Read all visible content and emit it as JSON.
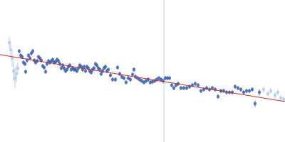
{
  "chart_data": {
    "type": "scatter",
    "tick_labels": false,
    "xlim": [
      0,
      400
    ],
    "ylim": [
      0,
      200
    ],
    "reference_lines": [
      {
        "x": 230,
        "color": "#c8d4ea"
      }
    ],
    "series": [
      {
        "color": "#b6c8e6",
        "marker": "circle",
        "x": [
          13,
          15,
          17,
          19,
          21,
          23,
          25,
          370,
          376,
          380,
          386,
          390,
          394,
          398
        ],
        "values": [
          140,
          130,
          118,
          100,
          90,
          96,
          104,
          74,
          68,
          72,
          66,
          70,
          62,
          60
        ],
        "errors": [
          8,
          10,
          12,
          14,
          14,
          12,
          8,
          4,
          4,
          4,
          4,
          4,
          4,
          4
        ]
      },
      {
        "color": "#3a63ad",
        "marker": "circle",
        "x": [
          27,
          29,
          31,
          33,
          35,
          36,
          38,
          40,
          42,
          44,
          46,
          48,
          50,
          52,
          54,
          56,
          58,
          60,
          62,
          64,
          66,
          68,
          70,
          72,
          74,
          76,
          78,
          80,
          82,
          84,
          86,
          88,
          90,
          92,
          94,
          96,
          98,
          100,
          102,
          104,
          106,
          108,
          110,
          112,
          114,
          116,
          118,
          120,
          122,
          124,
          126,
          128,
          130,
          132,
          134,
          136,
          138,
          140,
          142,
          144,
          146,
          148,
          150,
          152,
          155,
          158,
          162,
          165,
          168,
          171,
          174,
          177,
          180,
          183,
          186,
          188,
          190,
          193,
          196,
          199,
          202,
          205,
          208,
          211,
          214,
          217,
          220,
          223,
          226,
          229,
          232,
          235,
          238,
          241,
          244,
          247,
          250,
          254,
          258,
          262,
          266,
          270,
          274,
          278,
          282,
          286,
          290,
          294,
          298,
          302,
          306,
          310,
          314,
          318,
          322,
          326,
          330,
          334,
          338,
          342,
          346,
          350,
          354,
          358,
          364
        ],
        "values": [
          128,
          122,
          120,
          112,
          110,
          99,
          115,
          122,
          118,
          125,
          128,
          115,
          112,
          114,
          120,
          118,
          115,
          107,
          105,
          99,
          110,
          114,
          112,
          114,
          116,
          112,
          113,
          116,
          114,
          110,
          104,
          108,
          104,
          100,
          102,
          106,
          108,
          102,
          104,
          102,
          102,
          100,
          104,
          108,
          106,
          102,
          106,
          100,
          106,
          104,
          100,
          98,
          102,
          104,
          110,
          108,
          104,
          102,
          96,
          100,
          104,
          106,
          100,
          102,
          94,
          88,
          88,
          105,
          96,
          92,
          90,
          84,
          90,
          88,
          95,
          102,
          92,
          90,
          88,
          86,
          84,
          86,
          88,
          84,
          85,
          86,
          88,
          90,
          88,
          86,
          90,
          90,
          90,
          80,
          76,
          80,
          82,
          76,
          76,
          76,
          78,
          80,
          82,
          80,
          72,
          74,
          76,
          74,
          76,
          74,
          64,
          72,
          72,
          70,
          70,
          70,
          78,
          76,
          74,
          70,
          72,
          72,
          74,
          54,
          70
        ],
        "errors": [
          3,
          3,
          3,
          3,
          3,
          3,
          3,
          3,
          3,
          3,
          3,
          3,
          3,
          3,
          3,
          3,
          3,
          3,
          3,
          3,
          3,
          3,
          3,
          3,
          3,
          3,
          3,
          3,
          3,
          3,
          3,
          3,
          3,
          3,
          3,
          3,
          3,
          3,
          3,
          3,
          3,
          3,
          3,
          3,
          3,
          3,
          3,
          3,
          3,
          3,
          3,
          3,
          3,
          3,
          3,
          3,
          3,
          3,
          3,
          3,
          3,
          3,
          3,
          3,
          3,
          3,
          3,
          3,
          3,
          3,
          3,
          3,
          3,
          3,
          3,
          3,
          3,
          3,
          3,
          3,
          3,
          3,
          3,
          3,
          3,
          3,
          3,
          3,
          3,
          3,
          3,
          3,
          3,
          3,
          3,
          3,
          3,
          3,
          3,
          3,
          3,
          3,
          3,
          3,
          3,
          3,
          3,
          3,
          3,
          3,
          3,
          3,
          3,
          3,
          3,
          3,
          3,
          3,
          3,
          3,
          3,
          3,
          3,
          4,
          4
        ]
      },
      {
        "type": "line",
        "color": "#d62728",
        "line_style": "solid",
        "x": [
          0,
          400
        ],
        "values": [
          123,
          57
        ]
      }
    ]
  }
}
